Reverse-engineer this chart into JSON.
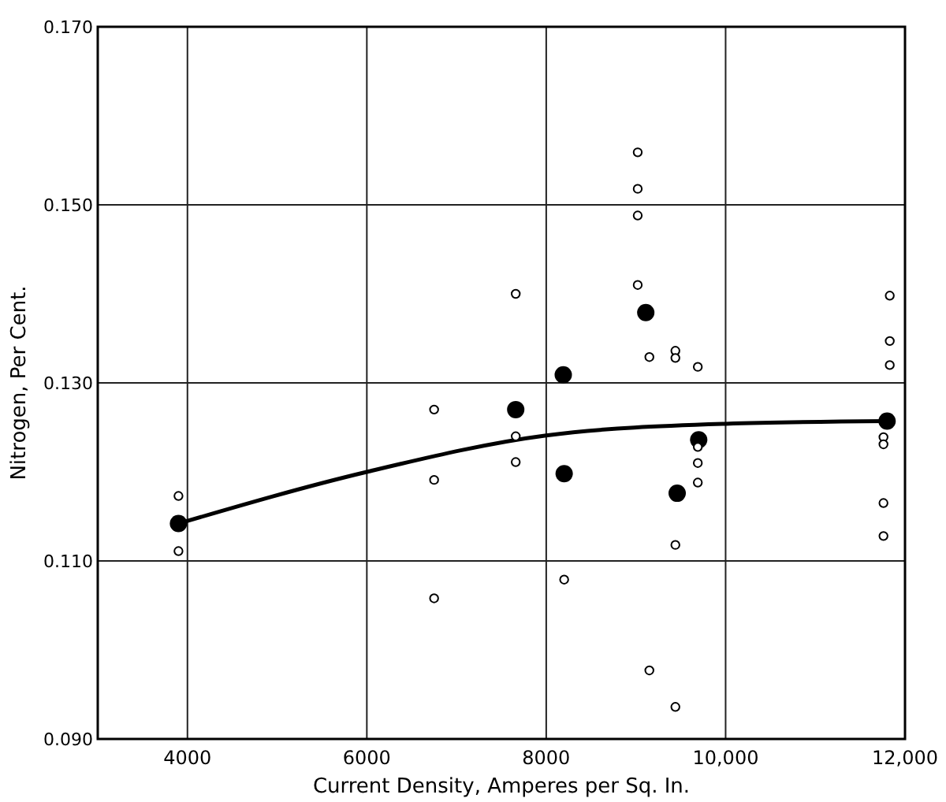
{
  "chart_data": {
    "type": "scatter",
    "xlabel": "Current Density, Amperes per Sq. In.",
    "ylabel": "Nitrogen, Per Cent.",
    "xlim": [
      3000,
      12000
    ],
    "xticks": [
      4000,
      6000,
      8000,
      {
        "value": 10000,
        "label": "10,000"
      },
      {
        "value": 12000,
        "label": "12,000"
      }
    ],
    "ylim": [
      0.09,
      0.17
    ],
    "yticks": [
      {
        "value": 0.09,
        "label": "0.090"
      },
      {
        "value": 0.11,
        "label": "0.110"
      },
      {
        "value": 0.13,
        "label": "0.130"
      },
      {
        "value": 0.15,
        "label": "0.150"
      },
      {
        "value": 0.17,
        "label": "0.170"
      }
    ],
    "grid": true,
    "marker": "circle",
    "series": [
      {
        "color": "#000000",
        "x": [
          3900,
          7660,
          8190,
          8200,
          9110,
          9460,
          9700,
          11800
        ],
        "values": [
          0.1142,
          0.127,
          0.1309,
          0.1198,
          0.1379,
          0.1176,
          0.1236,
          0.1257
        ]
      },
      {
        "color": "#ffffff",
        "x": [
          3900,
          3900,
          6750,
          6750,
          6750,
          7660,
          7660,
          7660,
          8200,
          9020,
          9020,
          9020,
          9020,
          9150,
          9150,
          9440,
          9440,
          9440,
          9440,
          9690,
          9690,
          9690,
          9690,
          11830,
          11830,
          11830,
          11760,
          11760,
          11760,
          11760
        ],
        "values": [
          0.1173,
          0.1111,
          0.127,
          0.1191,
          0.1058,
          0.14,
          0.124,
          0.1211,
          0.1079,
          0.1559,
          0.1518,
          0.1488,
          0.141,
          0.1329,
          0.0977,
          0.1336,
          0.1328,
          0.1118,
          0.0936,
          0.1318,
          0.1228,
          0.121,
          0.1188,
          0.1398,
          0.1347,
          0.132,
          0.1239,
          0.1231,
          0.1165,
          0.1128
        ]
      },
      {
        "type": "line",
        "marker": "none",
        "color": "#000000",
        "x": [
          3900,
          6000,
          8000,
          10000,
          11800
        ],
        "values": [
          0.1142,
          0.12,
          0.1241,
          0.1254,
          0.1257
        ]
      }
    ]
  }
}
